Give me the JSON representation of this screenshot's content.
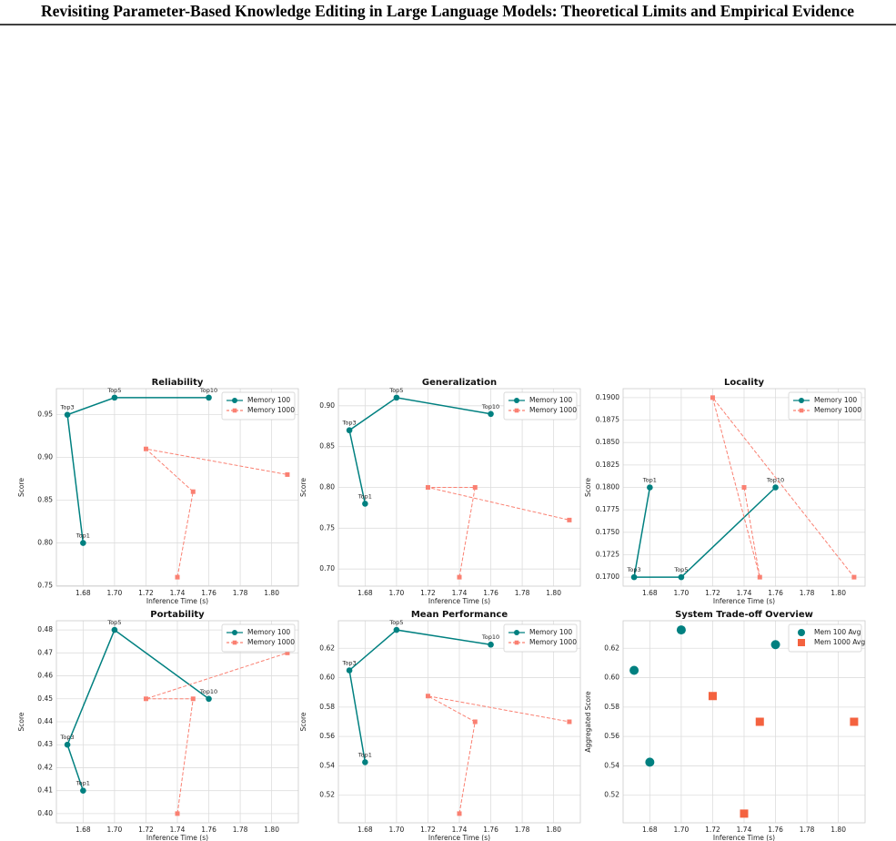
{
  "header": {
    "title": "Revisiting Parameter-Based Knowledge Editing in Large Language Models: Theoretical Limits and Empirical Evidence"
  },
  "chart_data": [
    {
      "type": "line",
      "title": "Reliability",
      "xlabel": "Inference Time (s)",
      "ylabel": "Score",
      "grid": true,
      "legend": "upper right",
      "xlim": [
        1.663,
        1.817
      ],
      "xticks": [
        1.68,
        {
          "value": 1.7,
          "label": "1.70"
        },
        1.72,
        1.74,
        1.76,
        1.78,
        {
          "value": 1.8,
          "label": "1.80"
        }
      ],
      "ylim": [
        0.7495,
        0.9805
      ],
      "yticks": [
        0.75,
        {
          "value": 0.8,
          "label": "0.80"
        },
        0.85,
        {
          "value": 0.9,
          "label": "0.90"
        },
        0.95
      ],
      "series": [
        {
          "name": "Memory 100",
          "color": "#008080",
          "marker": "circle",
          "linestyle": "solid",
          "x": [
            1.68,
            1.67,
            1.7,
            1.76
          ],
          "values": [
            0.8,
            0.95,
            0.97,
            0.97
          ],
          "point_labels": [
            "Top1",
            "Top3",
            "Top5",
            "Top10"
          ]
        },
        {
          "name": "Memory 1000",
          "color": "#fa8072",
          "marker": "square",
          "linestyle": "dashed",
          "x": [
            1.74,
            1.75,
            1.72,
            1.81
          ],
          "values": [
            0.76,
            0.86,
            0.91,
            0.88
          ]
        }
      ]
    },
    {
      "type": "line",
      "title": "Generalization",
      "xlabel": "Inference Time (s)",
      "ylabel": "Score",
      "grid": true,
      "legend": "upper right",
      "xlim": [
        1.663,
        1.817
      ],
      "xticks": [
        1.68,
        {
          "value": 1.7,
          "label": "1.70"
        },
        1.72,
        1.74,
        1.76,
        1.78,
        {
          "value": 1.8,
          "label": "1.80"
        }
      ],
      "ylim": [
        0.679,
        0.921
      ],
      "yticks": [
        {
          "value": 0.7,
          "label": "0.70"
        },
        0.75,
        {
          "value": 0.8,
          "label": "0.80"
        },
        0.85,
        {
          "value": 0.9,
          "label": "0.90"
        }
      ],
      "series": [
        {
          "name": "Memory 100",
          "color": "#008080",
          "marker": "circle",
          "linestyle": "solid",
          "x": [
            1.68,
            1.67,
            1.7,
            1.76
          ],
          "values": [
            0.78,
            0.87,
            0.91,
            0.89
          ],
          "point_labels": [
            "Top1",
            "Top3",
            "Top5",
            "Top10"
          ]
        },
        {
          "name": "Memory 1000",
          "color": "#fa8072",
          "marker": "square",
          "linestyle": "dashed",
          "x": [
            1.74,
            1.75,
            1.72,
            1.81
          ],
          "values": [
            0.69,
            0.8,
            0.8,
            0.76
          ]
        }
      ]
    },
    {
      "type": "line",
      "title": "Locality",
      "xlabel": "Inference Time (s)",
      "ylabel": "Score",
      "grid": true,
      "legend": "upper right",
      "xlim": [
        1.663,
        1.817
      ],
      "xticks": [
        1.68,
        {
          "value": 1.7,
          "label": "1.70"
        },
        1.72,
        1.74,
        1.76,
        1.78,
        {
          "value": 1.8,
          "label": "1.80"
        }
      ],
      "ylim": [
        0.169,
        0.191
      ],
      "yticks": [
        {
          "value": 0.17,
          "label": "0.1700"
        },
        {
          "value": 0.1725,
          "label": "0.1725"
        },
        {
          "value": 0.175,
          "label": "0.1750"
        },
        {
          "value": 0.1775,
          "label": "0.1775"
        },
        {
          "value": 0.18,
          "label": "0.1800"
        },
        {
          "value": 0.1825,
          "label": "0.1825"
        },
        {
          "value": 0.185,
          "label": "0.1850"
        },
        {
          "value": 0.1875,
          "label": "0.1875"
        },
        {
          "value": 0.19,
          "label": "0.1900"
        }
      ],
      "series": [
        {
          "name": "Memory 100",
          "color": "#008080",
          "marker": "circle",
          "linestyle": "solid",
          "x": [
            1.68,
            1.67,
            1.7,
            1.76
          ],
          "values": [
            0.18,
            0.17,
            0.17,
            0.18
          ],
          "point_labels": [
            "Top1",
            "Top3",
            "Top5",
            "Top10"
          ]
        },
        {
          "name": "Memory 1000",
          "color": "#fa8072",
          "marker": "square",
          "linestyle": "dashed",
          "x": [
            1.74,
            1.75,
            1.72,
            1.81
          ],
          "values": [
            0.18,
            0.17,
            0.19,
            0.17
          ]
        }
      ]
    },
    {
      "type": "line",
      "title": "Portability",
      "xlabel": "Inference Time (s)",
      "ylabel": "Score",
      "grid": true,
      "legend": "upper right",
      "xlim": [
        1.663,
        1.817
      ],
      "xticks": [
        1.68,
        {
          "value": 1.7,
          "label": "1.70"
        },
        1.72,
        1.74,
        1.76,
        1.78,
        {
          "value": 1.8,
          "label": "1.80"
        }
      ],
      "ylim": [
        0.396,
        0.484
      ],
      "yticks": [
        {
          "value": 0.4,
          "label": "0.40"
        },
        0.41,
        0.42,
        0.43,
        0.44,
        0.45,
        0.46,
        0.47,
        0.48
      ],
      "series": [
        {
          "name": "Memory 100",
          "color": "#008080",
          "marker": "circle",
          "linestyle": "solid",
          "x": [
            1.68,
            1.67,
            1.7,
            1.76
          ],
          "values": [
            0.41,
            0.43,
            0.48,
            0.45
          ],
          "point_labels": [
            "Top1",
            "Top3",
            "Top5",
            "Top10"
          ]
        },
        {
          "name": "Memory 1000",
          "color": "#fa8072",
          "marker": "square",
          "linestyle": "dashed",
          "x": [
            1.74,
            1.75,
            1.72,
            1.81
          ],
          "values": [
            0.4,
            0.45,
            0.45,
            0.47
          ]
        }
      ]
    },
    {
      "type": "line",
      "title": "Mean Performance",
      "xlabel": "Inference Time (s)",
      "ylabel": "Score",
      "grid": true,
      "legend": "upper right",
      "xlim": [
        1.663,
        1.817
      ],
      "xticks": [
        1.68,
        {
          "value": 1.7,
          "label": "1.70"
        },
        1.72,
        1.74,
        1.76,
        1.78,
        {
          "value": 1.8,
          "label": "1.80"
        }
      ],
      "ylim": [
        0.50125,
        0.63875
      ],
      "yticks": [
        0.52,
        0.54,
        0.56,
        0.58,
        {
          "value": 0.6,
          "label": "0.60"
        },
        0.62
      ],
      "series": [
        {
          "name": "Memory 100",
          "color": "#008080",
          "marker": "circle",
          "linestyle": "solid",
          "x": [
            1.68,
            1.67,
            1.7,
            1.76
          ],
          "values": [
            0.5425,
            0.605,
            0.6325,
            0.6225
          ],
          "point_labels": [
            "Top1",
            "Top3",
            "Top5",
            "Top10"
          ]
        },
        {
          "name": "Memory 1000",
          "color": "#fa8072",
          "marker": "square",
          "linestyle": "dashed",
          "x": [
            1.74,
            1.75,
            1.72,
            1.81
          ],
          "values": [
            0.5075,
            0.57,
            0.5875,
            0.57
          ]
        }
      ]
    },
    {
      "type": "scatter",
      "title": "System Trade-off Overview",
      "xlabel": "Inference Time (s)",
      "ylabel": "Aggregated Score",
      "grid": true,
      "legend": "upper right",
      "xlim": [
        1.663,
        1.817
      ],
      "xticks": [
        1.68,
        {
          "value": 1.7,
          "label": "1.70"
        },
        1.72,
        1.74,
        1.76,
        1.78,
        {
          "value": 1.8,
          "label": "1.80"
        }
      ],
      "ylim": [
        0.50125,
        0.63875
      ],
      "yticks": [
        0.52,
        0.54,
        0.56,
        0.58,
        {
          "value": 0.6,
          "label": "0.60"
        },
        0.62
      ],
      "series": [
        {
          "name": "Mem 100 Avg",
          "color": "#008080",
          "marker": "circle",
          "x": [
            1.68,
            1.67,
            1.7,
            1.76
          ],
          "values": [
            0.5425,
            0.605,
            0.6325,
            0.6225
          ]
        },
        {
          "name": "Mem 1000 Avg",
          "color": "#f4623f",
          "marker": "square",
          "x": [
            1.74,
            1.75,
            1.72,
            1.81
          ],
          "values": [
            0.5075,
            0.57,
            0.5875,
            0.57
          ]
        }
      ]
    }
  ]
}
